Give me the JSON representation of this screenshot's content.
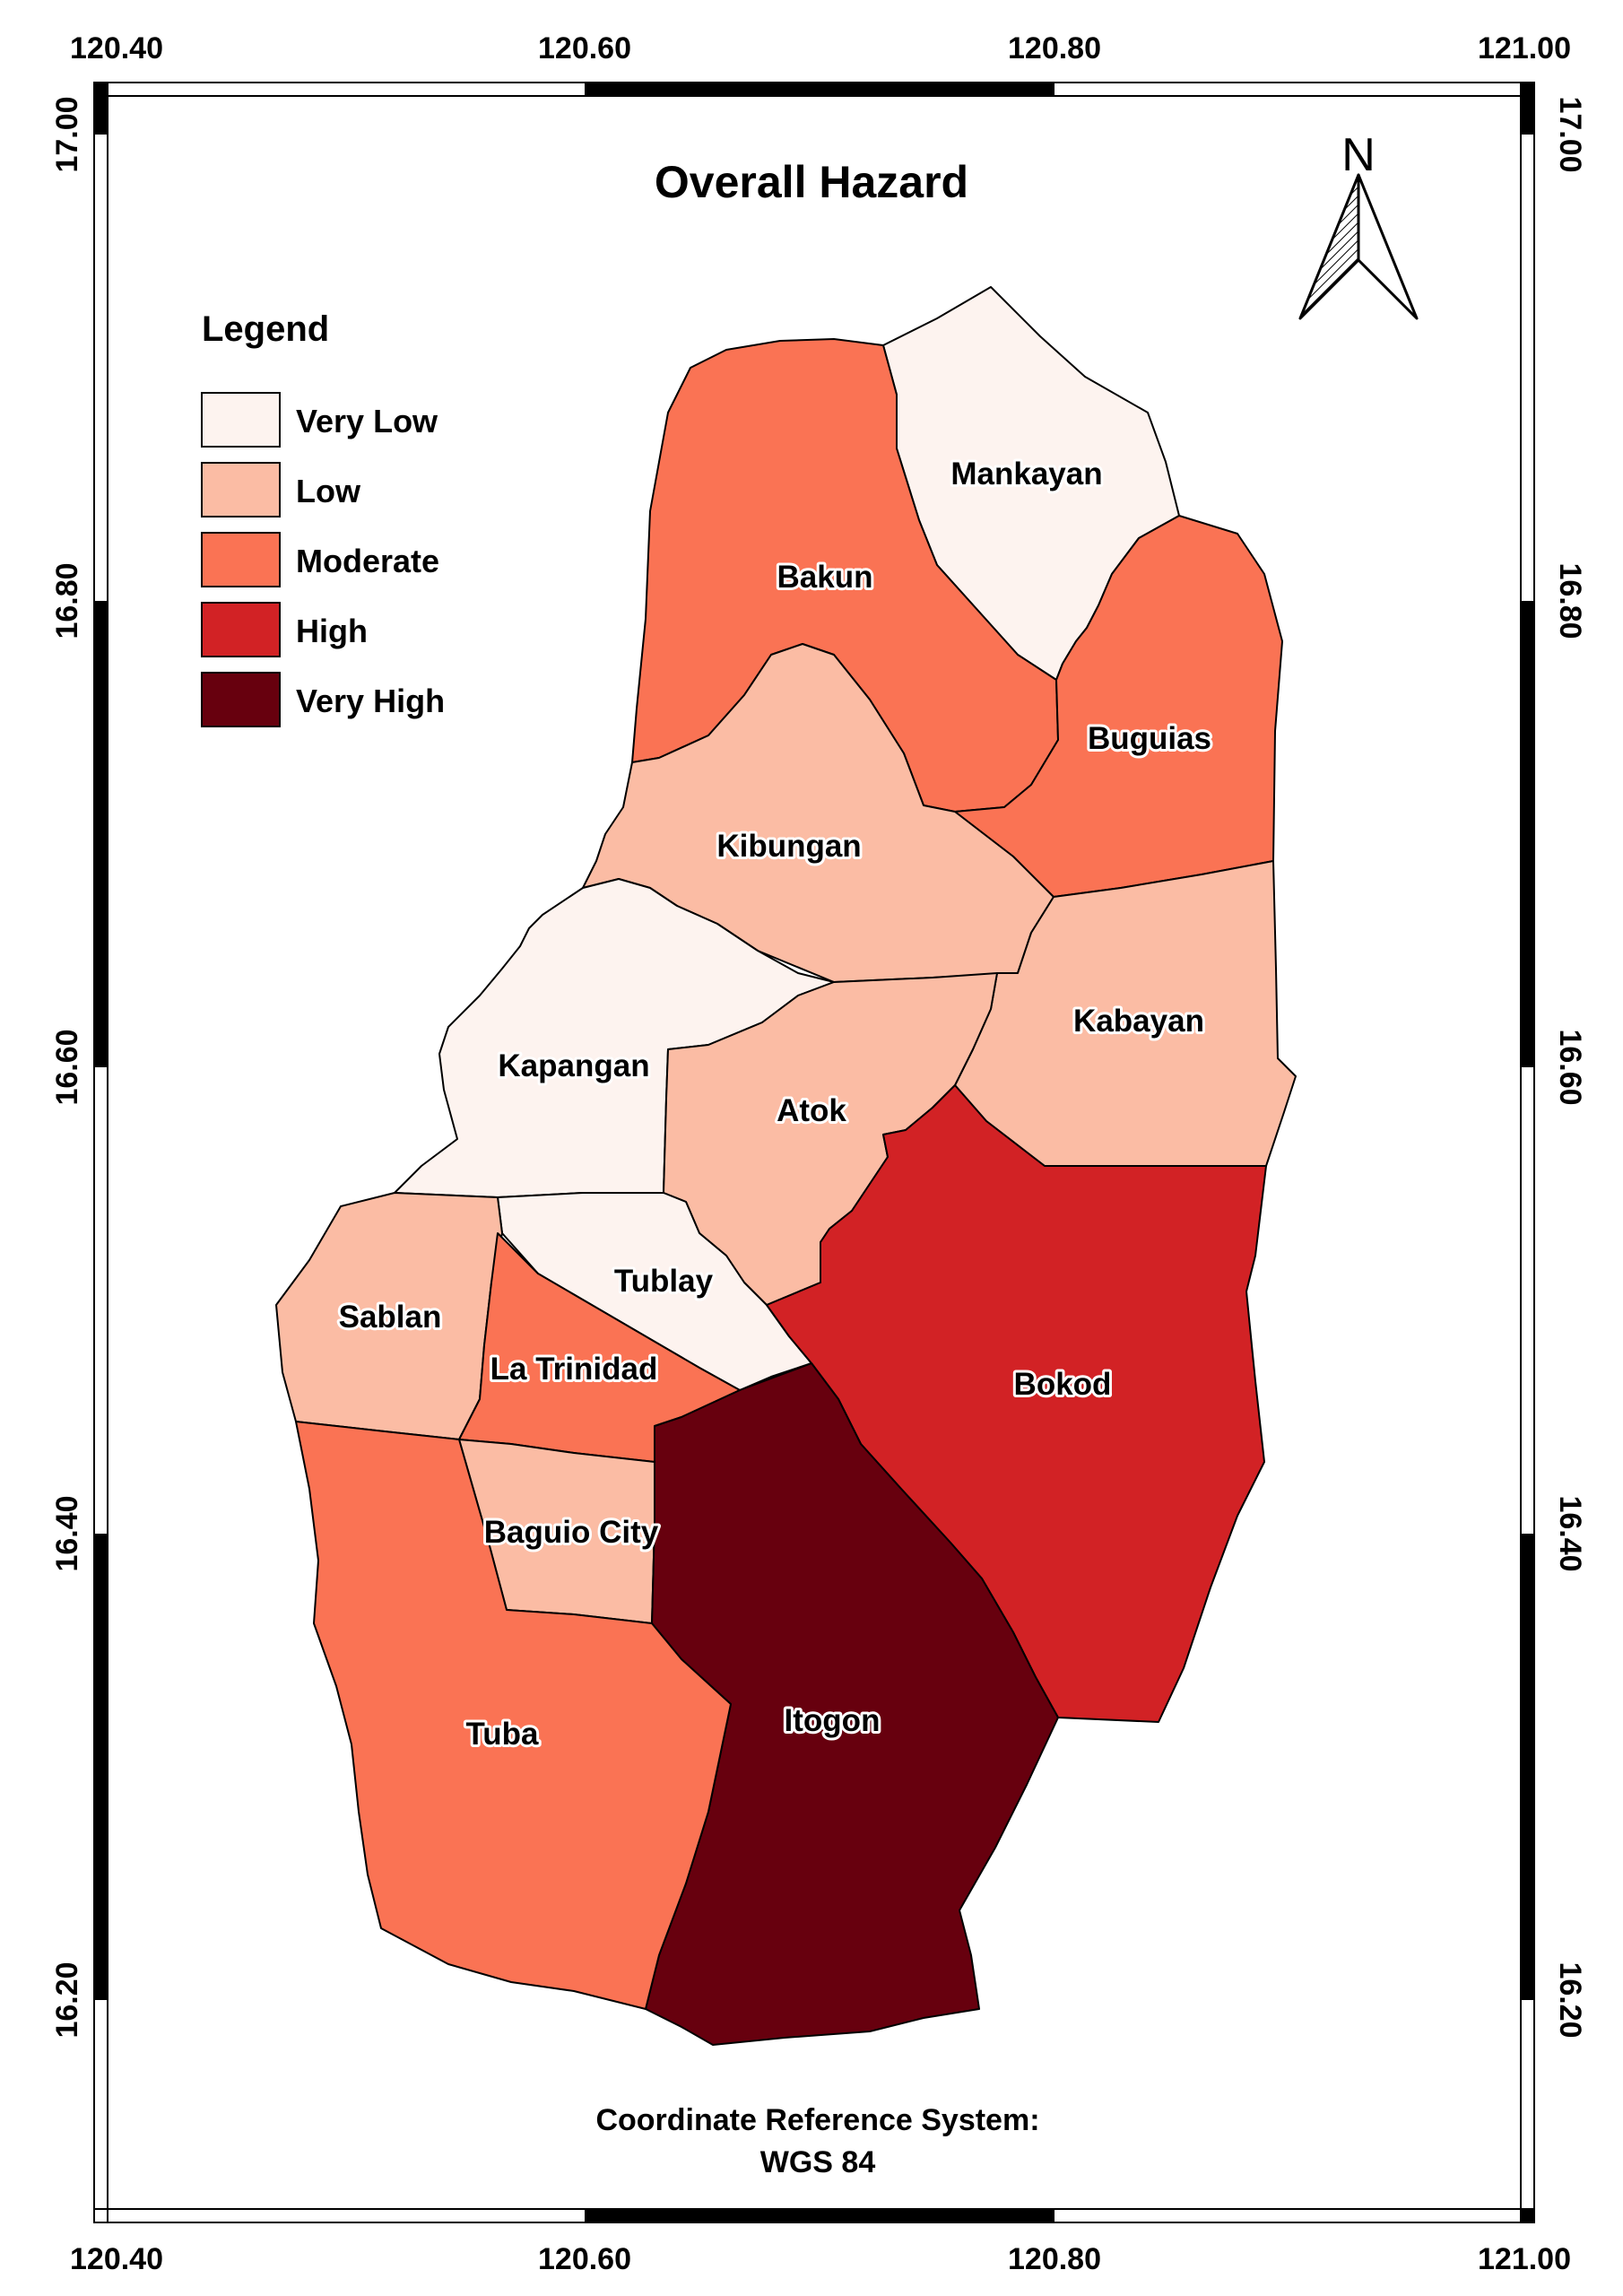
{
  "map": {
    "title": "Overall Hazard",
    "north_arrow_label": "N",
    "crs_line1": "Coordinate Reference System:",
    "crs_line2": "WGS 84"
  },
  "frame": {
    "lon_labels": [
      "120.40",
      "120.60",
      "120.80",
      "121.00"
    ],
    "lat_labels": [
      "17.00",
      "16.80",
      "16.60",
      "16.40",
      "16.20"
    ]
  },
  "legend": {
    "title": "Legend",
    "classes": [
      {
        "label": "Very Low",
        "color": "#fdf3ef"
      },
      {
        "label": "Low",
        "color": "#fbbca4"
      },
      {
        "label": "Moderate",
        "color": "#fa7354"
      },
      {
        "label": "High",
        "color": "#d22225"
      },
      {
        "label": "Very High",
        "color": "#67000e"
      }
    ]
  },
  "municipalities": [
    {
      "name": "Mankayan",
      "hazard": "Very Low"
    },
    {
      "name": "Bakun",
      "hazard": "Moderate"
    },
    {
      "name": "Buguias",
      "hazard": "Moderate"
    },
    {
      "name": "Kibungan",
      "hazard": "Low"
    },
    {
      "name": "Kabayan",
      "hazard": "Low"
    },
    {
      "name": "Kapangan",
      "hazard": "Very Low"
    },
    {
      "name": "Atok",
      "hazard": "Low"
    },
    {
      "name": "Tublay",
      "hazard": "Very Low"
    },
    {
      "name": "Sablan",
      "hazard": "Low"
    },
    {
      "name": "La Trinidad",
      "hazard": "Moderate"
    },
    {
      "name": "Bokod",
      "hazard": "High"
    },
    {
      "name": "Baguio City",
      "hazard": "Low"
    },
    {
      "name": "Itogon",
      "hazard": "Very High"
    },
    {
      "name": "Tuba",
      "hazard": "Moderate"
    }
  ]
}
